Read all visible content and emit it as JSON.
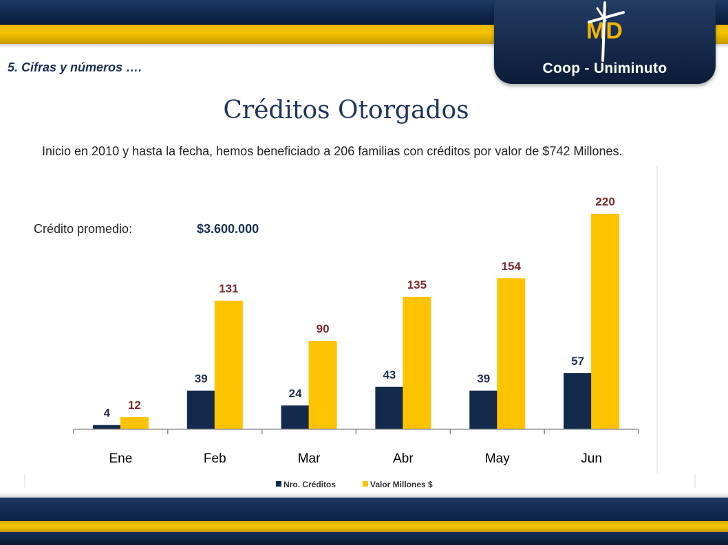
{
  "header": {
    "section": "5. Cifras y números ….",
    "logo_mark": "MD",
    "logo_text": "Coop - Uniminuto"
  },
  "title": "Créditos Otorgados",
  "intro": "Inicio en 2010 y hasta la fecha, hemos beneficiado a 206 familias con créditos por valor de $742 Millones.",
  "average": {
    "label": "Crédito promedio:",
    "value": "$3.600.000"
  },
  "colors": {
    "navy": "#132a4d",
    "gold": "#fdc300",
    "label_dark": "#1f2f4f",
    "label_red": "#7a2a2a"
  },
  "chart_data": {
    "type": "bar",
    "categories": [
      "Ene",
      "Feb",
      "Mar",
      "Abr",
      "May",
      "Jun"
    ],
    "series": [
      {
        "name": "Nro. Créditos",
        "values": [
          4,
          39,
          24,
          43,
          39,
          57
        ]
      },
      {
        "name": "Valor Millones $",
        "values": [
          12,
          131,
          90,
          135,
          154,
          220
        ]
      }
    ],
    "title": "",
    "xlabel": "",
    "ylabel": "",
    "ylim": [
      0,
      220
    ],
    "grid": false,
    "legend": "bottom"
  }
}
